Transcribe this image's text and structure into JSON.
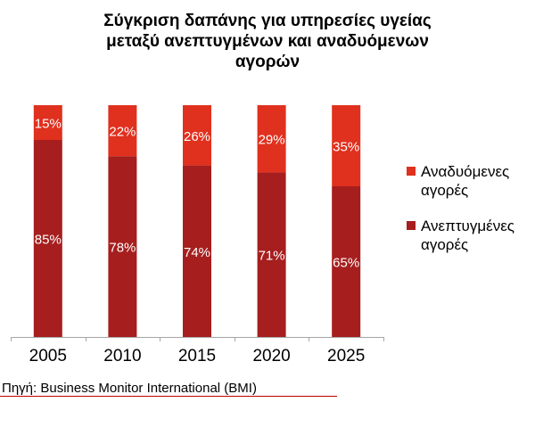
{
  "title_lines": [
    "Σύγκριση δαπάνης για υπηρεσίες υγείας",
    "μεταξύ ανεπτυγμένων και αναδυόμενων",
    "αγορών"
  ],
  "source": "Πηγή: Business Monitor International (BMI)",
  "colors": {
    "developed": "#a61e1e",
    "emerging": "#e0301e",
    "axis": "#a6a6a6",
    "accent": "#c00000"
  },
  "legend": [
    {
      "label_lines": [
        "Αναδυόμενες",
        "αγορές"
      ],
      "series": "emerging"
    },
    {
      "label_lines": [
        "Ανεπτυγμένες",
        "αγορές"
      ],
      "series": "developed"
    }
  ],
  "chart_data": {
    "type": "bar",
    "stacked": true,
    "title": "Σύγκριση δαπάνης για υπηρεσίες υγείας μεταξύ ανεπτυγμένων και αναδυόμενων αγορών",
    "categories": [
      "2005",
      "2010",
      "2015",
      "2020",
      "2025"
    ],
    "series": [
      {
        "key": "developed",
        "name": "Ανεπτυγμένες αγορές",
        "values": [
          85,
          78,
          74,
          71,
          65
        ],
        "labels": [
          "85%",
          "78%",
          "74%",
          "71%",
          "65%"
        ]
      },
      {
        "key": "emerging",
        "name": "Αναδυόμενες αγορές",
        "values": [
          15,
          22,
          26,
          29,
          35
        ],
        "labels": [
          "15%",
          "22%",
          "26%",
          "29%",
          "35%"
        ]
      }
    ],
    "ylim": [
      0,
      100
    ],
    "xlabel": "",
    "ylabel": "",
    "legend_position": "right",
    "grid": false
  }
}
